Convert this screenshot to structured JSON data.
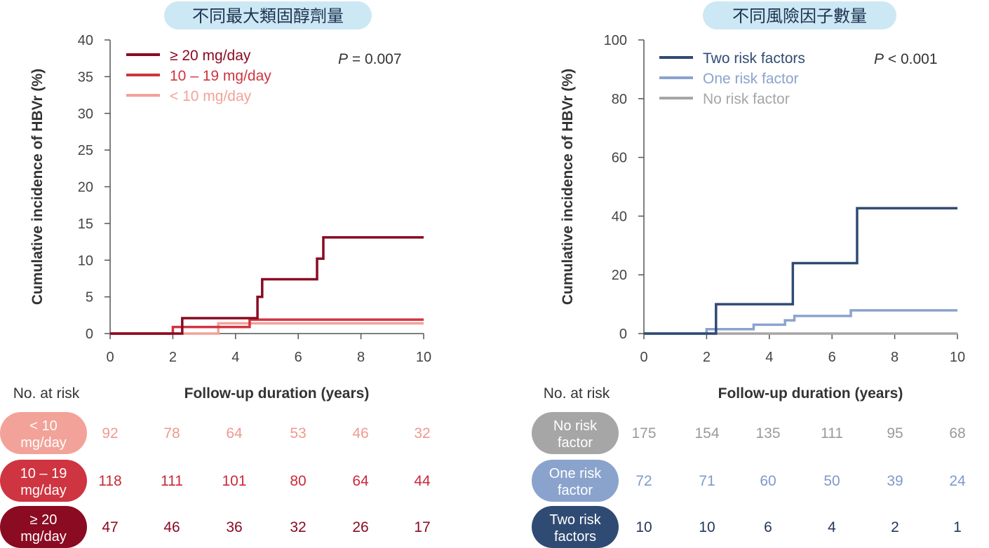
{
  "risk_header": "No. at risk",
  "chart_data": [
    {
      "type": "line",
      "title": "不同最大類固醇劑量",
      "xlabel": "Follow-up duration (years)",
      "ylabel": "Cumulative incidence of HBVr (%)",
      "xlim": [
        0,
        10
      ],
      "ylim": [
        0,
        40
      ],
      "xticks": [
        0,
        2,
        4,
        6,
        8,
        10
      ],
      "yticks": [
        0,
        5,
        10,
        15,
        20,
        25,
        30,
        35,
        40
      ],
      "p_label": "P",
      "p_value": "= 0.007",
      "legend_position": "top-left",
      "grid": false,
      "series": [
        {
          "name": "≥ 20 mg/day",
          "color": "#8a0b22",
          "x": [
            0,
            2.3,
            2.3,
            4.7,
            4.7,
            4.85,
            4.85,
            6.6,
            6.6,
            6.8,
            6.8,
            10
          ],
          "y": [
            0,
            0,
            2.1,
            2.1,
            5,
            5,
            7.4,
            7.4,
            10.2,
            10.2,
            13.1,
            13.1
          ]
        },
        {
          "name": "10 – 19 mg/day",
          "color": "#cf3441",
          "x": [
            0,
            2.0,
            2.0,
            4.45,
            4.45,
            10
          ],
          "y": [
            0,
            0,
            0.9,
            0.9,
            1.9,
            1.9
          ]
        },
        {
          "name": "< 10 mg/day",
          "color": "#f2a298",
          "x": [
            0,
            3.45,
            3.45,
            10
          ],
          "y": [
            0,
            0,
            1.4,
            1.4
          ]
        }
      ],
      "at_risk": [
        {
          "label_lines": [
            "< 10",
            "mg/day"
          ],
          "color": "#f2a298",
          "text_color": "#ef9a8f",
          "counts": [
            "92",
            "78",
            "64",
            "53",
            "46",
            "32"
          ]
        },
        {
          "label_lines": [
            "10 – 19",
            "mg/day"
          ],
          "color": "#cf3441",
          "text_color": "#c92a3a",
          "counts": [
            "118",
            "111",
            "101",
            "80",
            "64",
            "44"
          ]
        },
        {
          "label_lines": [
            "≥ 20",
            "mg/day"
          ],
          "color": "#8a0b22",
          "text_color": "#8a0b22",
          "counts": [
            "47",
            "46",
            "36",
            "32",
            "26",
            "17"
          ]
        }
      ]
    },
    {
      "type": "line",
      "title": "不同風險因子數量",
      "xlabel": "Follow-up duration (years)",
      "ylabel": "Cumulative incidence of HBVr (%)",
      "xlim": [
        0,
        10
      ],
      "ylim": [
        0,
        100
      ],
      "xticks": [
        0,
        2,
        4,
        6,
        8,
        10
      ],
      "yticks": [
        0,
        20,
        40,
        60,
        80,
        100
      ],
      "p_label": "P",
      "p_value": "< 0.001",
      "legend_position": "top-left",
      "grid": false,
      "series": [
        {
          "name": "Two risk factors",
          "color": "#304b73",
          "x": [
            0,
            2.3,
            2.3,
            4.75,
            4.75,
            6.8,
            6.8,
            10
          ],
          "y": [
            0,
            0,
            10,
            10,
            24,
            24,
            42.7,
            42.7
          ]
        },
        {
          "name": "One risk factor",
          "color": "#8aa3cd",
          "x": [
            0,
            2.0,
            2.0,
            3.5,
            3.5,
            4.5,
            4.5,
            4.8,
            4.8,
            6.6,
            6.6,
            10
          ],
          "y": [
            0,
            0,
            1.5,
            1.5,
            3,
            3,
            4.5,
            4.5,
            6,
            6,
            7.9,
            7.9
          ]
        },
        {
          "name": "No risk factor",
          "color": "#a6a6a6",
          "x": [
            0,
            10
          ],
          "y": [
            0,
            0
          ]
        }
      ],
      "at_risk": [
        {
          "label_lines": [
            "No risk",
            "factor"
          ],
          "color": "#a6a6a6",
          "text_color": "#9a9a9a",
          "counts": [
            "175",
            "154",
            "135",
            "111",
            "95",
            "68"
          ]
        },
        {
          "label_lines": [
            "One risk",
            "factor"
          ],
          "color": "#8aa3cd",
          "text_color": "#7f9acb",
          "counts": [
            "72",
            "71",
            "60",
            "50",
            "39",
            "24"
          ]
        },
        {
          "label_lines": [
            "Two risk",
            "factors"
          ],
          "color": "#304b73",
          "text_color": "#24375a",
          "counts": [
            "10",
            "10",
            "6",
            "4",
            "2",
            "1"
          ]
        }
      ]
    }
  ]
}
